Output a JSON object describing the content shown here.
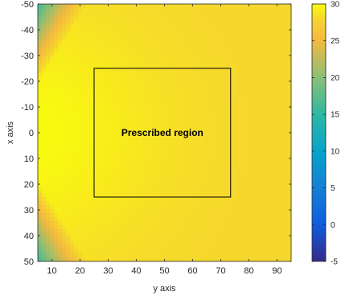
{
  "chart_data": {
    "type": "heatmap",
    "title": "",
    "xlabel": "y axis",
    "ylabel": "x axis",
    "x_ticks": [
      10,
      20,
      30,
      40,
      50,
      60,
      70,
      80,
      90
    ],
    "y_ticks": [
      -50,
      -40,
      -30,
      -20,
      -10,
      0,
      10,
      20,
      30,
      40,
      50
    ],
    "xlim": [
      5,
      95
    ],
    "ylim": [
      -50,
      50
    ],
    "y_axis_reversed": true,
    "colorbar": {
      "ticks": [
        -5,
        0,
        5,
        10,
        15,
        20,
        25,
        30
      ],
      "range": [
        -5,
        30
      ],
      "colormap": "parula",
      "location": "right"
    },
    "field_description_values": {
      "max_value": 30,
      "plateau_value": 28,
      "wedge_min_value": 14
    },
    "annotation": {
      "label": "Prescribed region",
      "rect_x": [
        25,
        73.5
      ],
      "rect_y": [
        -25,
        25
      ]
    }
  }
}
